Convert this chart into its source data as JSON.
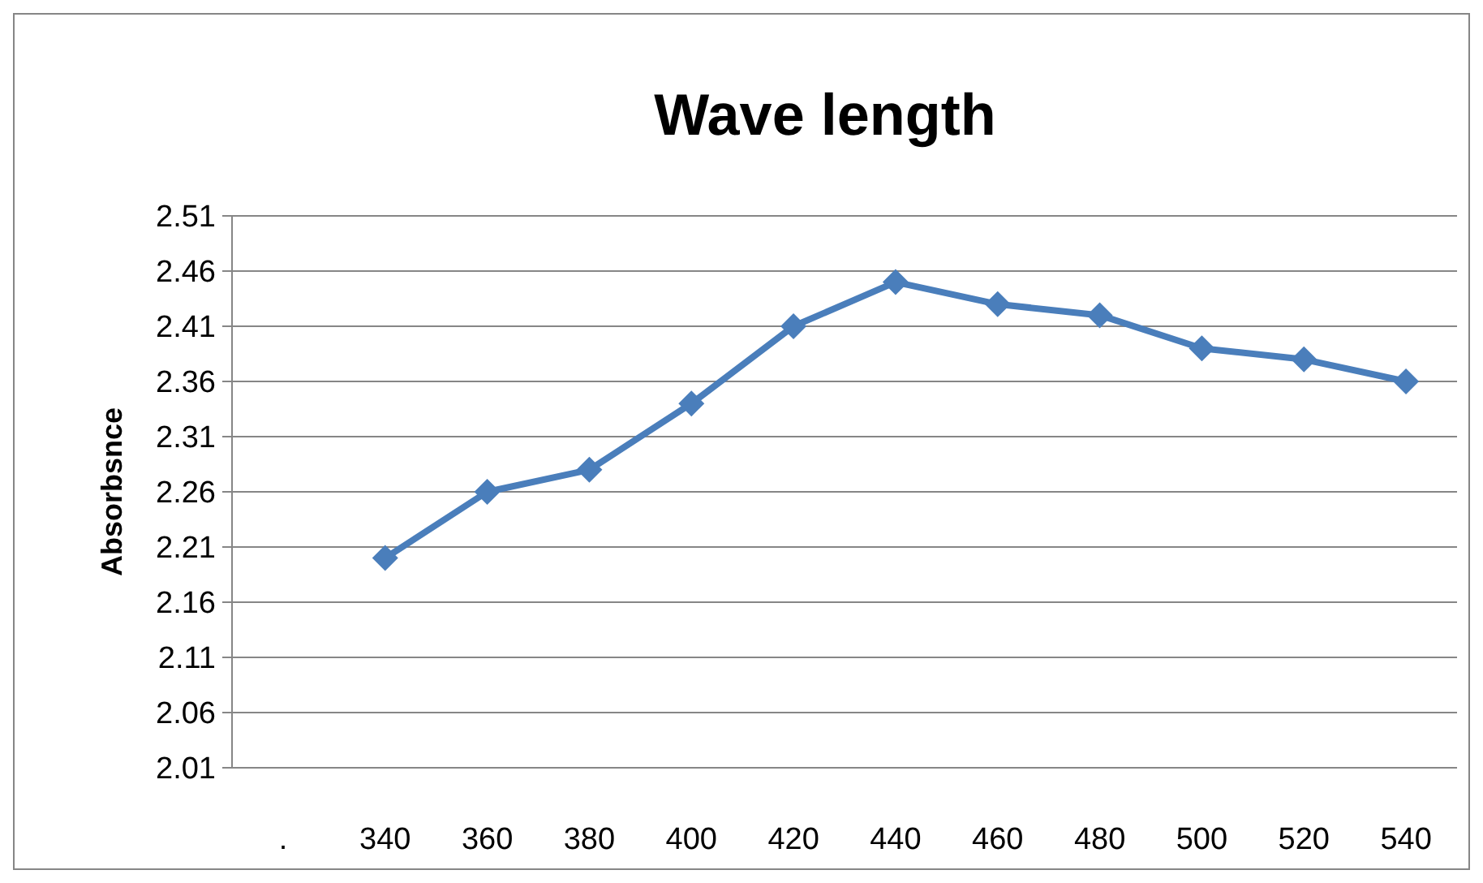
{
  "chart_data": {
    "type": "line",
    "title": "Wave length",
    "ylabel": "Absorbsnce",
    "categories": [
      ".",
      "340",
      "360",
      "380",
      "400",
      "420",
      "440",
      "460",
      "480",
      "500",
      "520",
      "540"
    ],
    "series": [
      {
        "color": "#4a7ebb",
        "values": [
          null,
          2.2,
          2.26,
          2.28,
          2.34,
          2.41,
          2.45,
          2.43,
          2.42,
          2.39,
          2.38,
          2.36
        ]
      }
    ],
    "ylim": [
      2.01,
      2.51
    ],
    "yticks": [
      2.01,
      2.06,
      2.11,
      2.16,
      2.21,
      2.26,
      2.31,
      2.36,
      2.41,
      2.46,
      2.51
    ],
    "grid": "y",
    "marker": "diamond",
    "line_style": "solid"
  }
}
